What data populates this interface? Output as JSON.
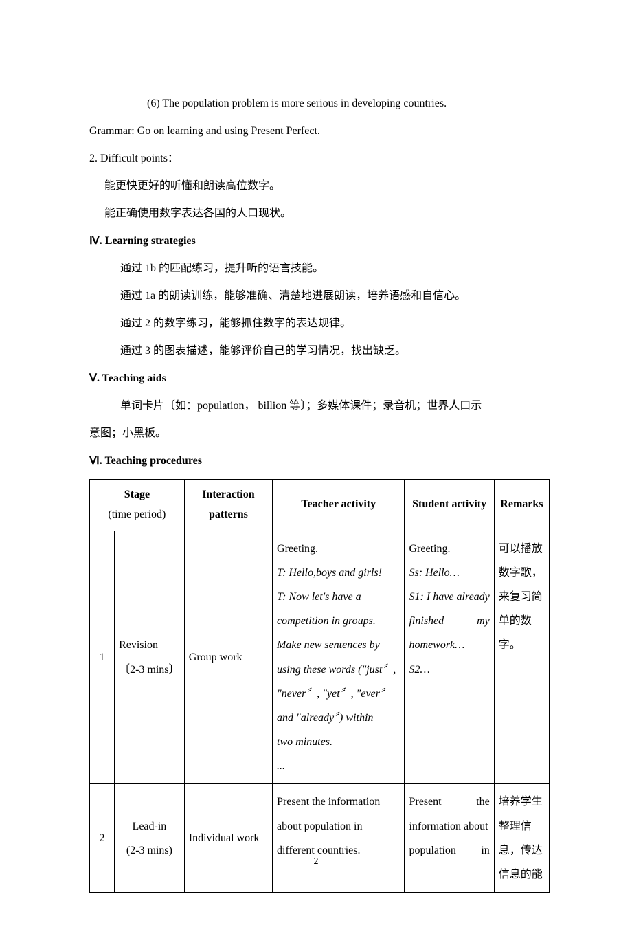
{
  "text": {
    "line1": "(6) The population problem is more serious in developing countries.",
    "line2": "Grammar: Go on learning and using Present Perfect.",
    "line3": "2. Difficult points：",
    "line4": "能更快更好的听懂和朗读高位数字。",
    "line5": "能正确使用数字表达各国的人口现状。",
    "heading4": "Ⅳ. Learning strategies",
    "line6": "通过 1b 的匹配练习，提升听的语言技能。",
    "line7": "通过 1a 的朗读训练，能够准确、清楚地进展朗读，培养语感和自信心。",
    "line8": "通过 2 的数字练习，能够抓住数字的表达规律。",
    "line9": "通过 3 的图表描述，能够评价自己的学习情况，找出缺乏。",
    "heading5": "Ⅴ. Teaching aids",
    "line10a": "单词卡片〔如：population，  billion 等〕；多媒体课件；录音机；世界人口示",
    "line10b": "意图；小黑板。",
    "heading6": "Ⅵ. Teaching procedures"
  },
  "table": {
    "headers": {
      "stage_l1": "Stage",
      "stage_l2": "(time period)",
      "interaction_l1": "Interaction",
      "interaction_l2": "patterns",
      "teacher": "Teacher activity",
      "student": "Student activity",
      "remarks": "Remarks"
    },
    "rows": [
      {
        "num": "1",
        "stage_l1": "Revision",
        "stage_l2": "〔2-3 mins〕",
        "interaction": "Group work",
        "teacher_lines": [
          "Greeting.",
          "T: Hello,boys and girls!",
          "T: Now let's have a",
          "competition in groups.",
          "Make new sentences by",
          "using these words (\"just〞,",
          "\"never〞, \"yet〞, \"ever〞",
          "and \"already〞) within",
          "two minutes.",
          "..."
        ],
        "teacher_italic_from": 1,
        "student_lines_just": [
          "Greeting.",
          "Ss: Hello…",
          "S1: I have already",
          "finished my",
          "homework…",
          "S2…"
        ],
        "student_italic_from": 1,
        "remarks": "可以播放数字歌，来复习简单的数字。"
      },
      {
        "num": "2",
        "stage_l1": "Lead-in",
        "stage_l2": "(2-3 mins)",
        "interaction": "Individual work",
        "teacher_lines": [
          "Present the information",
          "about population in",
          "different countries."
        ],
        "teacher_italic_from": 99,
        "student_lines_just": [
          "Present the",
          "information about",
          "population in"
        ],
        "student_italic_from": 99,
        "remarks": "培养学生整理信息，传达信息的能"
      }
    ]
  },
  "page_number": "2",
  "style": {
    "body_font_size": 16,
    "text_color": "#000000",
    "background_color": "#ffffff",
    "border_color": "#000000"
  }
}
